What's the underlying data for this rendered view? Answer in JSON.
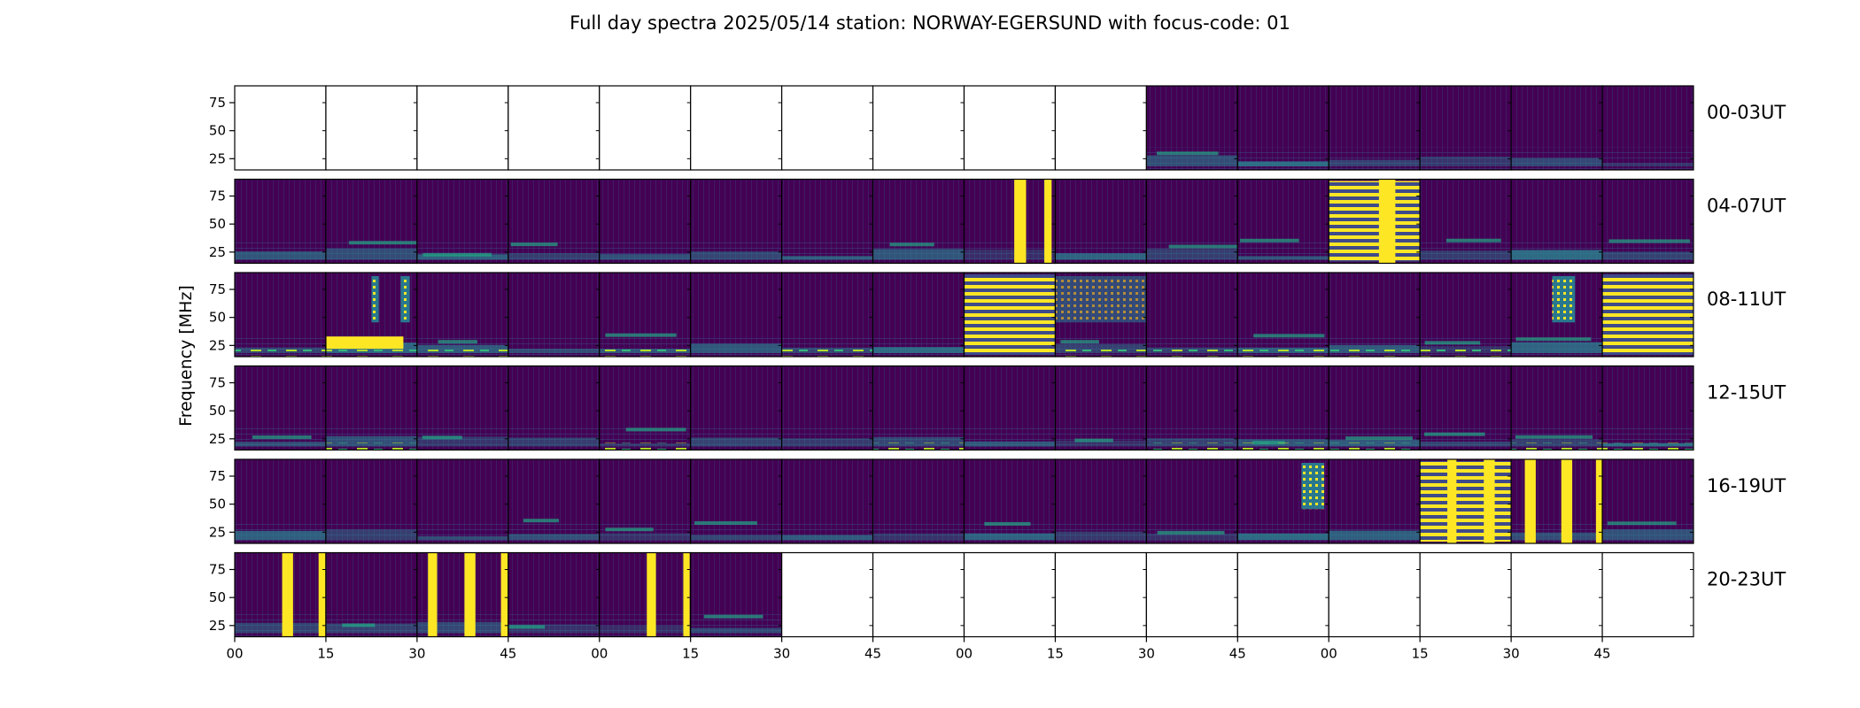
{
  "chart_data": {
    "type": "heatmap",
    "title": "Full day spectra 2025/05/14 station: NORWAY-EGERSUND with focus-code: 01",
    "ylabel": "Frequency [MHz]",
    "xlabel": "",
    "y_ticks": [
      25,
      50,
      75
    ],
    "ylim": [
      15,
      90
    ],
    "x_tick_labels": [
      "00",
      "15",
      "30",
      "45",
      "00",
      "15",
      "30",
      "45",
      "00",
      "15",
      "30",
      "45",
      "00",
      "15",
      "30",
      "45"
    ],
    "colormap": "viridis",
    "colors": {
      "low": "#440154",
      "mid": "#2b7f8e",
      "high": "#fde725",
      "empty": "#ffffff"
    },
    "rows": [
      {
        "label": "00-03UT",
        "panels": [
          0,
          0,
          0,
          0,
          0,
          0,
          0,
          0,
          0,
          0,
          1,
          1,
          1,
          1,
          1,
          1
        ]
      },
      {
        "label": "04-07UT",
        "panels": [
          1,
          1,
          1,
          1,
          1,
          1,
          1,
          1,
          1,
          1,
          1,
          1,
          1,
          1,
          1,
          1
        ]
      },
      {
        "label": "08-11UT",
        "panels": [
          1,
          1,
          1,
          1,
          1,
          1,
          1,
          1,
          1,
          1,
          1,
          1,
          1,
          1,
          1,
          1
        ]
      },
      {
        "label": "12-15UT",
        "panels": [
          1,
          1,
          1,
          1,
          1,
          1,
          1,
          1,
          1,
          1,
          1,
          1,
          1,
          1,
          1,
          1
        ]
      },
      {
        "label": "16-19UT",
        "panels": [
          1,
          1,
          1,
          1,
          1,
          1,
          1,
          1,
          1,
          1,
          1,
          1,
          1,
          1,
          1,
          1
        ]
      },
      {
        "label": "20-23UT",
        "panels": [
          1,
          1,
          1,
          1,
          1,
          1,
          0,
          0,
          0,
          0,
          0,
          0,
          0,
          0,
          0,
          0
        ]
      }
    ]
  }
}
